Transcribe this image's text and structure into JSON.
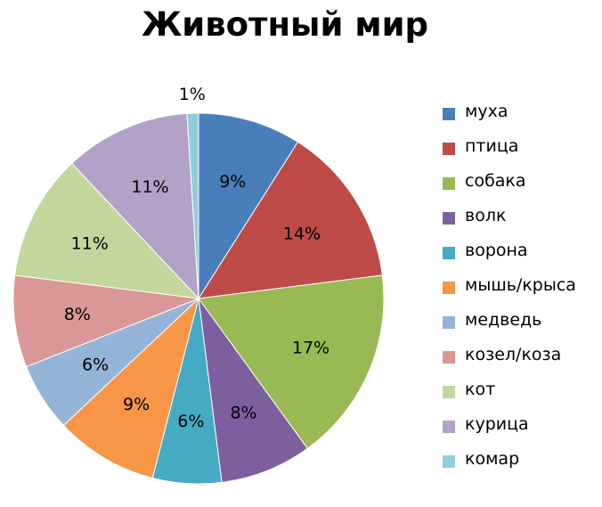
{
  "chart_data": {
    "type": "pie",
    "title": "Животный мир",
    "categories": [
      "муха",
      "птица",
      "собака",
      "волк",
      "ворона",
      "мышь/крыса",
      "медведь",
      "козел/коза",
      "кот",
      "курица",
      "комар"
    ],
    "values": [
      9,
      14,
      17,
      8,
      6,
      9,
      6,
      8,
      11,
      11,
      1
    ],
    "labels": [
      "9%",
      "14%",
      "17%",
      "8%",
      "6%",
      "9%",
      "6%",
      "8%",
      "11%",
      "11%",
      "1%"
    ],
    "colors": [
      "#4A7EBB",
      "#BE4B48",
      "#98B954",
      "#7D5FA0",
      "#46AAC5",
      "#F79646",
      "#95B3D7",
      "#D99795",
      "#C3D69B",
      "#B3A2C7",
      "#93CDDD"
    ],
    "legend_position": "right"
  }
}
